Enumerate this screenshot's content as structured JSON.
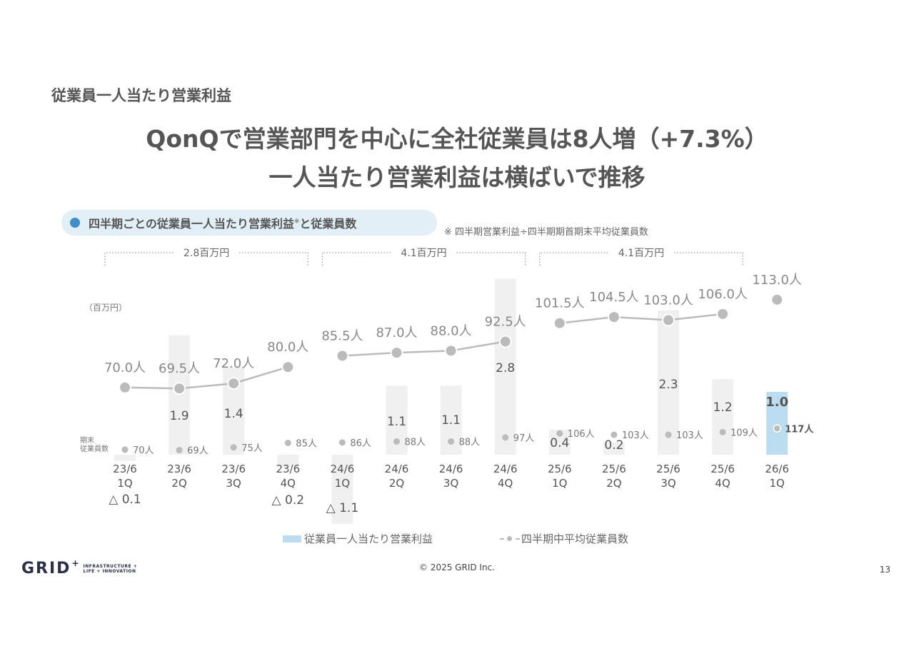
{
  "section_title": "従業員一人当たり営業利益",
  "headline": {
    "line1": "QonQで営業部門を中心に全社従業員は8人増（+7.3%）",
    "line2": "一人当たり営業利益は横ばいで推移"
  },
  "chart_header": {
    "label": "四半期ごとの従業員一人当たり営業利益",
    "sup": "※",
    "suffix": "と従業員数",
    "note": "※ 四半期営業利益÷四半期期首期末平均従業員数"
  },
  "legend": {
    "bar_label": "従業員一人当たり営業利益",
    "line_label": "四半期中平均従業員数"
  },
  "footer": {
    "logo_text": "GRID",
    "logo_plus": "+",
    "logo_tag_line1": "INFRASTRUCTURE +",
    "logo_tag_line2": "LIFE + INNOVATION",
    "copyright": "© 2025 GRID Inc.",
    "page_number": "13"
  },
  "colors": {
    "bar_default": "#f0f0f0",
    "bar_highlight": "#bcdcef",
    "line": "#bbbbbb",
    "dot": "#bbbbbb"
  },
  "chart_data": {
    "type": "bar",
    "yunit_label": "（百万円）",
    "end_employee_label": "期末\n従業員数",
    "categories": [
      "23/6\n1Q",
      "23/6\n2Q",
      "23/6\n3Q",
      "23/6\n4Q",
      "24/6\n1Q",
      "24/6\n2Q",
      "24/6\n3Q",
      "24/6\n4Q",
      "25/6\n1Q",
      "25/6\n2Q",
      "25/6\n3Q",
      "25/6\n4Q",
      "26/6\n1Q"
    ],
    "series": [
      {
        "name": "従業員一人当たり営業利益",
        "unit": "百万円",
        "values": [
          -0.1,
          1.9,
          1.4,
          -0.2,
          -1.1,
          1.1,
          1.1,
          2.8,
          0.4,
          0.2,
          2.3,
          1.2,
          1.0
        ],
        "labels": [
          "△ 0.1",
          "1.9",
          "1.4",
          "△ 0.2",
          "△ 1.1",
          "1.1",
          "1.1",
          "2.8",
          "0.4",
          "0.2",
          "2.3",
          "1.2",
          "1.0"
        ],
        "highlight_index": 12
      },
      {
        "name": "四半期中平均従業員数",
        "unit": "人",
        "values": [
          70.0,
          69.5,
          72.0,
          80.0,
          85.5,
          87.0,
          88.0,
          92.5,
          101.5,
          104.5,
          103.0,
          106.0,
          113.0
        ],
        "labels": [
          "70.0人",
          "69.5人",
          "72.0人",
          "80.0人",
          "85.5人",
          "87.0人",
          "88.0人",
          "92.5人",
          "101.5人",
          "104.5人",
          "103.0人",
          "106.0人",
          "113.0人"
        ]
      },
      {
        "name": "期末従業員数",
        "unit": "人",
        "values": [
          70,
          69,
          75,
          85,
          86,
          88,
          88,
          97,
          106,
          103,
          103,
          109,
          117
        ],
        "labels": [
          "70人",
          "69人",
          "75人",
          "85人",
          "86人",
          "88人",
          "88人",
          "97人",
          "106人",
          "103人",
          "103人",
          "109人",
          "117人"
        ]
      }
    ],
    "annual_totals": [
      {
        "label": "2.8百万円",
        "from_index": 0,
        "to_index": 3
      },
      {
        "label": "4.1百万円",
        "from_index": 4,
        "to_index": 7
      },
      {
        "label": "4.1百万円",
        "from_index": 8,
        "to_index": 11
      }
    ]
  }
}
